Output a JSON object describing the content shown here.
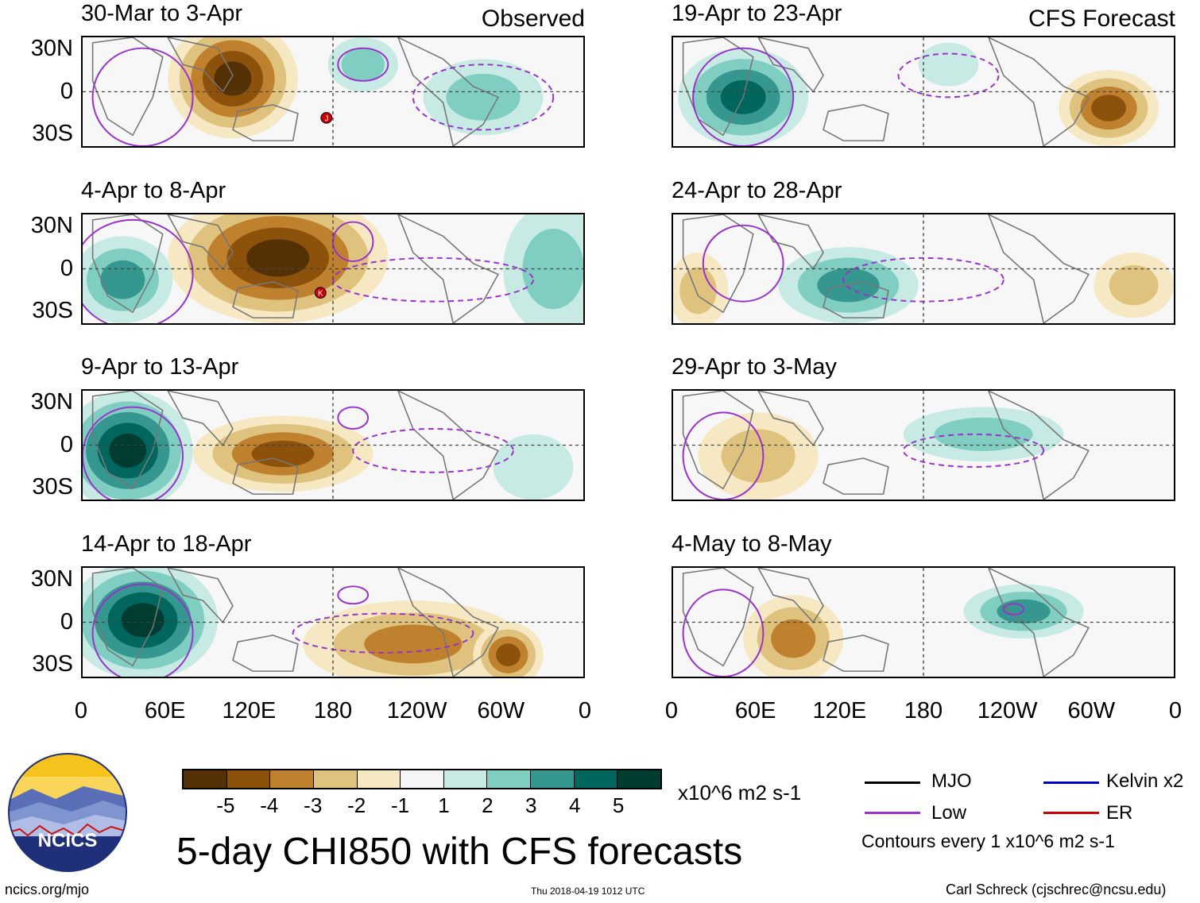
{
  "chart_data": {
    "type": "heatmap",
    "title": "5-day CHI850 with CFS forecasts",
    "variable": "CHI850",
    "units": "x10^6 m2 s-1",
    "colorbar": {
      "ticks": [
        "-5",
        "-4",
        "-3",
        "-2",
        "-1",
        "1",
        "2",
        "3",
        "4",
        "5"
      ],
      "colors": [
        "#543005",
        "#8c510a",
        "#bf812d",
        "#dfc27d",
        "#f6e8c3",
        "#f5f5f5",
        "#c7eae5",
        "#80cdc1",
        "#35978f",
        "#01665e",
        "#003c30"
      ]
    },
    "lat_ticks": [
      "30N",
      "0",
      "30S"
    ],
    "lon_ticks": [
      "0",
      "60E",
      "120E",
      "180",
      "120W",
      "60W",
      "0"
    ],
    "columns": [
      {
        "label": "Observed",
        "panels": [
          {
            "title": "30-Mar to 3-Apr",
            "storms": [
              "J"
            ]
          },
          {
            "title": "4-Apr to 8-Apr",
            "storms": [
              "K"
            ]
          },
          {
            "title": "9-Apr to 13-Apr",
            "storms": []
          },
          {
            "title": "14-Apr to 18-Apr",
            "storms": []
          }
        ]
      },
      {
        "label": "CFS Forecast",
        "panels": [
          {
            "title": "19-Apr to 23-Apr",
            "storms": []
          },
          {
            "title": "24-Apr to 28-Apr",
            "storms": []
          },
          {
            "title": "29-Apr to 3-May",
            "storms": []
          },
          {
            "title": "4-May to 8-May",
            "storms": []
          }
        ]
      }
    ],
    "legend": [
      {
        "label": "MJO",
        "color": "#000000"
      },
      {
        "label": "Kelvin x2",
        "color": "#0000cc"
      },
      {
        "label": "Low",
        "color": "#9932cc"
      },
      {
        "label": "ER",
        "color": "#cc0000"
      }
    ],
    "contour_note": "Contours every 1 x10^6 m2 s-1"
  },
  "logo_text": "NCICS",
  "footer": {
    "left": "ncics.org/mjo",
    "middle": "Thu 2018-04-19 1012 UTC",
    "right": "Carl Schreck (cjschrec@ncsu.edu)"
  }
}
